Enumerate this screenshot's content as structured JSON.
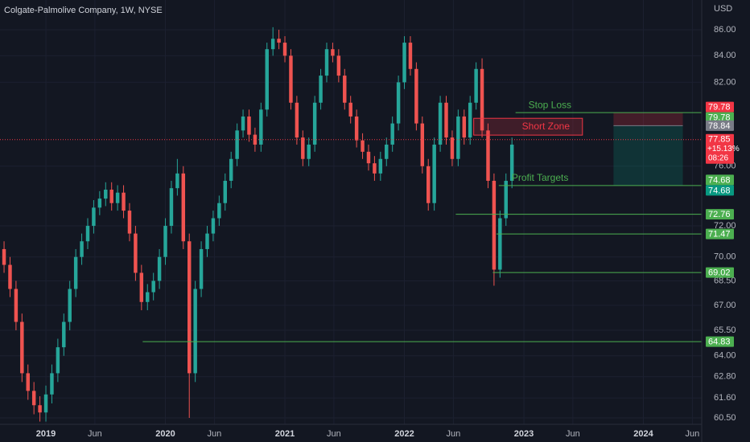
{
  "chart_data": {
    "type": "candlestick",
    "title": "Colgate-Palmolive Company, 1W, NYSE",
    "currency": "USD",
    "log_scale": true,
    "grid": true,
    "up_color": "#26a69a",
    "down_color": "#ef5350",
    "x": [
      2018.65,
      2018.7,
      2018.75,
      2018.8,
      2018.85,
      2018.9,
      2018.95,
      2019,
      2019.05,
      2019.1,
      2019.15,
      2019.2,
      2019.25,
      2019.3,
      2019.35,
      2019.4,
      2019.45,
      2019.5,
      2019.55,
      2019.6,
      2019.65,
      2019.7,
      2019.75,
      2019.8,
      2019.85,
      2019.9,
      2019.95,
      2020,
      2020.05,
      2020.1,
      2020.15,
      2020.2,
      2020.25,
      2020.3,
      2020.35,
      2020.4,
      2020.45,
      2020.5,
      2020.55,
      2020.6,
      2020.65,
      2020.7,
      2020.75,
      2020.8,
      2020.85,
      2020.9,
      2020.95,
      2021,
      2021.05,
      2021.1,
      2021.15,
      2021.2,
      2021.25,
      2021.3,
      2021.35,
      2021.4,
      2021.45,
      2021.5,
      2021.55,
      2021.6,
      2021.65,
      2021.7,
      2021.75,
      2021.8,
      2021.85,
      2021.9,
      2021.95,
      2022,
      2022.05,
      2022.1,
      2022.15,
      2022.2,
      2022.25,
      2022.3,
      2022.35,
      2022.4,
      2022.45,
      2022.5,
      2022.55,
      2022.6,
      2022.65,
      2022.7,
      2022.75,
      2022.8,
      2022.85,
      2022.9
    ],
    "open": [
      70.5,
      69.5,
      68,
      66,
      63,
      62,
      61.2,
      60.8,
      61.8,
      63,
      64.5,
      66,
      68,
      70,
      71,
      72,
      73.2,
      73.8,
      74.4,
      73.5,
      74.2,
      73,
      71.5,
      69,
      67.2,
      67.8,
      68.5,
      70,
      72,
      74.5,
      75.5,
      71,
      63,
      68,
      70.5,
      71.5,
      72.5,
      73.5,
      75,
      76.5,
      78.5,
      79.5,
      78.2,
      77.5,
      80,
      84.5,
      85.3,
      85,
      84,
      80.5,
      78,
      76.5,
      77.5,
      80.5,
      82.5,
      84.5,
      84,
      82.5,
      80.5,
      79.5,
      77.8,
      77,
      76.2,
      75.5,
      76.5,
      77.5,
      79,
      82,
      85,
      83,
      79,
      76,
      73.5,
      77.5,
      80.5,
      78,
      76.5,
      79.5,
      78,
      80.5,
      83,
      78.5,
      75,
      69.2,
      72.5,
      75
    ],
    "high": [
      71,
      70,
      68.5,
      66.5,
      63.5,
      62.5,
      61.7,
      62.3,
      63.5,
      65,
      66.5,
      68.5,
      70.5,
      71.5,
      72.5,
      73.7,
      74.3,
      74.9,
      74.9,
      74.7,
      74.7,
      73.5,
      72,
      69.5,
      68.3,
      69,
      70.5,
      72.5,
      75,
      76.5,
      76,
      71.5,
      68.5,
      71,
      72,
      73,
      74,
      75.5,
      77,
      79,
      80,
      80,
      78.7,
      80.5,
      85,
      86.2,
      86,
      85.5,
      84.5,
      81,
      78.5,
      78,
      81,
      83,
      85,
      85,
      84.5,
      83,
      81,
      80,
      78.3,
      77.5,
      76.7,
      77,
      78,
      79.5,
      82.5,
      85.5,
      85.5,
      83.5,
      79.5,
      76.5,
      78,
      81,
      81,
      78.5,
      80,
      80,
      81,
      83.5,
      83.8,
      79,
      75.5,
      73,
      75.5,
      78
    ],
    "low": [
      69,
      67.5,
      65.5,
      62.5,
      61.5,
      60.7,
      60.3,
      60.3,
      61.3,
      62.5,
      64,
      65.5,
      67.5,
      69.5,
      70.5,
      71.5,
      72.7,
      73.3,
      73,
      73,
      72.5,
      71,
      68.5,
      66.7,
      66.7,
      67.3,
      68,
      69.5,
      71.5,
      74,
      70.5,
      60.5,
      62.5,
      67.5,
      70,
      71,
      72,
      73,
      74.5,
      76,
      78,
      77.7,
      77,
      77,
      79.5,
      84,
      84.5,
      83.5,
      80,
      77.5,
      76,
      76,
      77,
      80,
      82,
      83.5,
      82,
      80,
      79,
      77.3,
      76.5,
      75.7,
      75,
      75,
      76,
      77,
      78.5,
      81.5,
      82.5,
      78.5,
      75.5,
      73,
      73,
      77,
      77.5,
      76,
      76,
      77.5,
      77.5,
      80,
      78,
      74.5,
      68.2,
      68.7,
      72,
      74.5
    ],
    "close": [
      69.5,
      68,
      66,
      63,
      62,
      61.2,
      60.8,
      61.8,
      63,
      64.5,
      66,
      68,
      70,
      71,
      72,
      73.2,
      73.8,
      74.4,
      73.5,
      74.2,
      73,
      71.5,
      69,
      67.2,
      67.8,
      68.5,
      70,
      72,
      74.5,
      75.5,
      71,
      63,
      68,
      70.5,
      71.5,
      72.5,
      73.5,
      75,
      76.5,
      78.5,
      79.5,
      78.2,
      77.5,
      80,
      84.5,
      85.3,
      85,
      84,
      80.5,
      78,
      76.5,
      77.5,
      80.5,
      82.5,
      84.5,
      84,
      82.5,
      80.5,
      79.5,
      77.8,
      77,
      76.2,
      75.5,
      76.5,
      77.5,
      79,
      82,
      85,
      83,
      79,
      76,
      73.5,
      77.5,
      80.5,
      78,
      76.5,
      79.5,
      78,
      80.5,
      83,
      78.5,
      75,
      69.2,
      72.5,
      75,
      77.5
    ],
    "xlim": [
      2018.616,
      2024.488
    ],
    "xticks": [
      2019,
      {
        "value": 2019.41,
        "label": "Jun"
      },
      2020,
      {
        "value": 2020.41,
        "label": "Jun"
      },
      2021,
      {
        "value": 2021.41,
        "label": "Jun"
      },
      2022,
      {
        "value": 2022.41,
        "label": "Jun"
      },
      2023,
      {
        "value": 2023.41,
        "label": "Jun"
      },
      2024,
      {
        "value": 2024.41,
        "label": "Jun"
      }
    ],
    "ylim": [
      60.15,
      88.35
    ],
    "yticks": [
      {
        "value": 86,
        "label": "86.00"
      },
      {
        "value": 84,
        "label": "84.00"
      },
      {
        "value": 82,
        "label": "82.00"
      },
      {
        "value": 76,
        "label": "76.00"
      },
      {
        "value": 72,
        "label": "72.00"
      },
      {
        "value": 70,
        "label": "70.00"
      },
      {
        "value": 68.5,
        "label": "68.50"
      },
      {
        "value": 67,
        "label": "67.00"
      },
      {
        "value": 65.5,
        "label": "65.50"
      },
      {
        "value": 64,
        "label": "64.00"
      },
      {
        "value": 62.8,
        "label": "62.80"
      },
      {
        "value": 61.6,
        "label": "61.60"
      },
      {
        "value": 60.5,
        "label": "60.50"
      }
    ],
    "levels": [
      {
        "value": 79.78,
        "start": 2022.93,
        "label": "Stop Loss"
      },
      {
        "value": 74.68,
        "start": 2022.79,
        "label": "Profit Targets"
      },
      {
        "value": 72.76,
        "start": 2022.43
      },
      {
        "value": 71.47,
        "start": 2022.77
      },
      {
        "value": 69.02,
        "start": 2022.74
      },
      {
        "value": 64.83,
        "start": 2019.81
      }
    ],
    "level_color": "#4caf50",
    "short_zone": {
      "label": "Short Zone",
      "top": 79.37,
      "bottom": 78.17,
      "start": 2022.58,
      "end": 2023.49,
      "color": "#f23645"
    },
    "position": {
      "stop": 79.78,
      "entry": 78.84,
      "target": 74.68,
      "start": 2023.75,
      "end": 2024.33
    },
    "price_tags": [
      {
        "value": 79.78,
        "color": "#f23645"
      },
      {
        "value": 79.78,
        "color": "#4caf50"
      },
      {
        "value": 78.84,
        "color": "#787b86"
      },
      {
        "value": 74.68,
        "color": "#4caf50"
      },
      {
        "value": 74.68,
        "color": "#089981"
      },
      {
        "value": 72.76,
        "color": "#4caf50"
      },
      {
        "value": 71.47,
        "color": "#4caf50"
      },
      {
        "value": 69.02,
        "color": "#4caf50"
      },
      {
        "value": 64.83,
        "color": "#4caf50"
      }
    ],
    "last_price": {
      "value": 77.85,
      "change": "+15.13%",
      "countdown": "08:26",
      "color": "#f23645"
    }
  }
}
